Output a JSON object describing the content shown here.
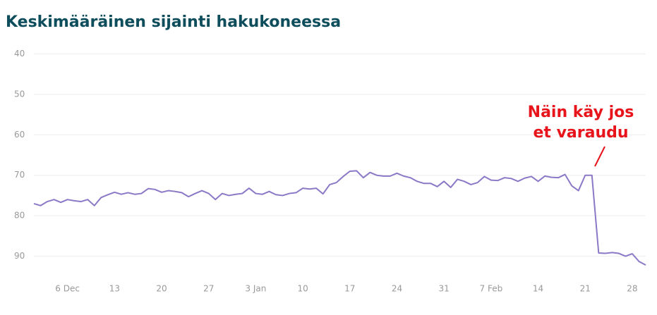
{
  "chart_data": {
    "type": "line",
    "title": "Keskimääräinen sijainti hakukoneessa",
    "categories": [
      null,
      null,
      null,
      null,
      null,
      "6 Dec",
      null,
      null,
      null,
      null,
      null,
      null,
      "13",
      null,
      null,
      null,
      null,
      null,
      null,
      "20",
      null,
      null,
      null,
      null,
      null,
      null,
      "27",
      null,
      null,
      null,
      null,
      null,
      null,
      "3 Jan",
      null,
      null,
      null,
      null,
      null,
      null,
      "10",
      null,
      null,
      null,
      null,
      null,
      null,
      "17",
      null,
      null,
      null,
      null,
      null,
      null,
      "24",
      null,
      null,
      null,
      null,
      null,
      null,
      "31",
      null,
      null,
      null,
      null,
      null,
      null,
      "7 Feb",
      null,
      null,
      null,
      null,
      null,
      null,
      "14",
      null,
      null,
      null,
      null,
      null,
      null,
      "21",
      null,
      null,
      null,
      null,
      null,
      null,
      "28",
      null,
      null
    ],
    "series": [
      {
        "color": "#8b78c6",
        "values": [
          77,
          77.5,
          76.5,
          76,
          76.7,
          76,
          76.3,
          76.5,
          76,
          77.5,
          75.5,
          74.8,
          74.2,
          74.7,
          74.3,
          74.7,
          74.5,
          73.3,
          73.5,
          74.2,
          73.8,
          74,
          74.3,
          75.3,
          74.5,
          73.8,
          74.5,
          76,
          74.5,
          75,
          74.7,
          74.5,
          73.2,
          74.5,
          74.7,
          74,
          74.8,
          75,
          74.5,
          74.3,
          73.2,
          73.4,
          73.2,
          74.6,
          72.3,
          71.8,
          70.3,
          69,
          68.9,
          70.6,
          69.3,
          70,
          70.2,
          70.2,
          69.5,
          70.2,
          70.6,
          71.5,
          72,
          72,
          72.8,
          71.5,
          73,
          71,
          71.5,
          72.3,
          71.8,
          70.3,
          71.2,
          71.3,
          70.6,
          70.8,
          71.5,
          70.7,
          70.3,
          71.5,
          70.2,
          70.5,
          70.6,
          69.8,
          72.6,
          73.8,
          70,
          70,
          89.2,
          89.3,
          89.1,
          89.3,
          90,
          89.4,
          91.3,
          92.2
        ]
      }
    ],
    "ylim": [
      38,
      96
    ],
    "y_inverted": true,
    "yticks": [
      40,
      50,
      60,
      70,
      80,
      90
    ],
    "grid": true,
    "annotation": [
      "Näin käy jos",
      "et varaudu"
    ],
    "annotation_color": "#e8141b"
  }
}
